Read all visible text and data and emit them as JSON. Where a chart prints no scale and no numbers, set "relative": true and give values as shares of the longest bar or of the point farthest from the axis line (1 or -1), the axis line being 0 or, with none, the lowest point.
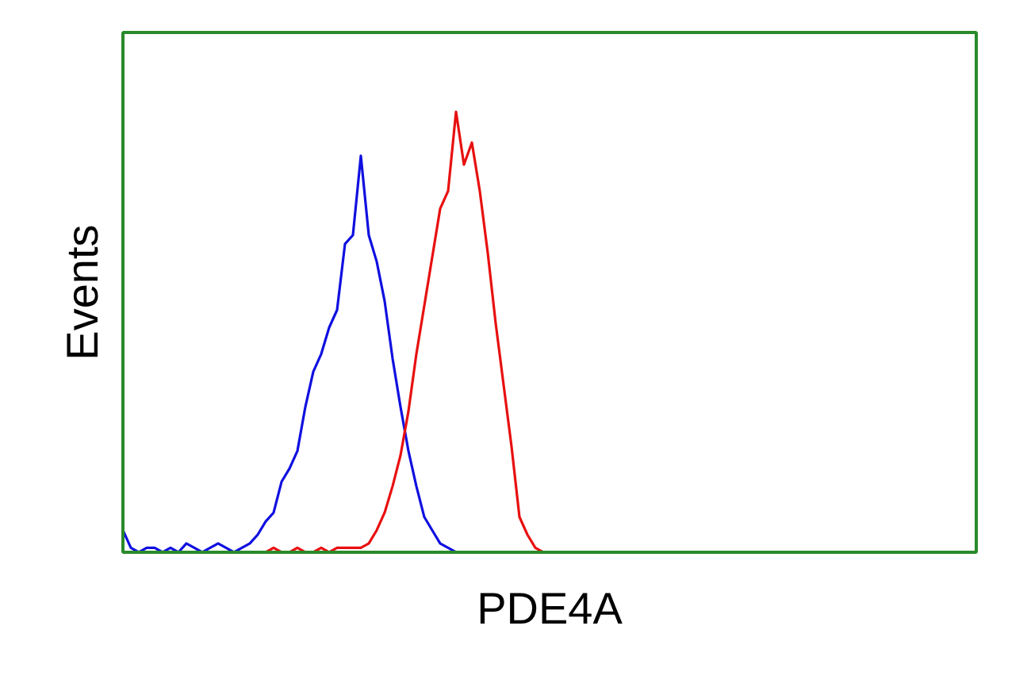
{
  "chart_data": {
    "type": "line",
    "relative": true,
    "xlabel": "PDE4A",
    "ylabel": "Events",
    "line_style": "solid",
    "marker": "none",
    "categories": [
      null,
      null,
      null,
      null,
      null,
      null,
      null,
      null,
      null,
      null,
      null,
      null,
      null,
      null,
      null,
      null,
      null,
      null,
      null,
      null,
      null,
      null,
      null,
      null,
      null,
      null,
      null,
      null,
      null,
      null,
      null,
      null,
      null,
      null,
      null,
      null,
      null,
      null,
      null,
      null,
      null,
      null,
      null,
      null,
      null,
      null,
      null,
      null,
      null,
      null,
      null,
      null,
      null,
      null,
      null,
      null,
      null,
      null,
      null,
      null,
      null,
      null,
      null,
      null,
      null,
      null,
      null,
      null,
      null,
      null,
      null,
      null,
      null,
      null,
      null,
      null,
      null,
      null,
      null,
      null,
      null,
      null,
      null,
      null,
      null,
      null,
      null,
      null,
      null,
      null,
      null,
      null,
      null,
      null,
      null,
      null,
      null,
      null,
      null,
      null,
      null,
      null,
      null,
      null,
      null,
      null,
      null,
      null
    ],
    "series": [
      {
        "color": "#1010e0",
        "values": [
          0.05,
          0.01,
          0,
          0.01,
          0.01,
          0,
          0.01,
          0,
          0.02,
          0.01,
          0,
          0.01,
          0.02,
          0.01,
          0,
          0.01,
          0.02,
          0.04,
          0.07,
          0.09,
          0.16,
          0.19,
          0.23,
          0.33,
          0.41,
          0.45,
          0.51,
          0.55,
          0.7,
          0.72,
          0.9,
          0.72,
          0.66,
          0.57,
          0.44,
          0.33,
          0.23,
          0.15,
          0.08,
          0.05,
          0.02,
          0.01,
          0,
          null,
          null,
          null,
          null,
          null,
          null,
          null,
          null,
          null,
          null,
          null,
          null,
          null,
          null,
          null,
          null,
          null,
          null,
          null,
          null,
          null,
          null,
          null,
          null,
          null,
          null,
          null,
          null,
          null,
          null,
          null,
          null,
          null,
          null,
          null,
          null,
          null,
          null,
          null,
          null,
          null,
          null,
          null,
          null,
          null,
          null,
          null,
          null,
          null,
          null,
          null,
          null,
          null,
          null,
          null,
          null,
          null,
          null,
          null,
          null,
          null,
          null,
          null,
          null,
          null
        ]
      },
      {
        "color": "#e81010",
        "values": [
          null,
          null,
          null,
          null,
          null,
          null,
          null,
          null,
          null,
          null,
          null,
          null,
          null,
          null,
          null,
          null,
          null,
          0,
          0,
          0.01,
          0,
          0,
          0.01,
          0,
          0,
          0.01,
          0,
          0.01,
          0.01,
          0.01,
          0.01,
          0.02,
          0.05,
          0.09,
          0.15,
          0.22,
          0.32,
          0.45,
          0.56,
          0.67,
          0.78,
          0.82,
          1.0,
          0.88,
          0.93,
          0.82,
          0.68,
          0.52,
          0.38,
          0.24,
          0.08,
          0.04,
          0.01,
          0,
          null,
          null,
          null,
          null,
          null,
          null,
          null,
          null,
          null,
          null,
          null,
          null,
          null,
          null,
          null,
          null,
          null,
          null,
          null,
          null,
          null,
          null,
          null,
          null,
          null,
          null,
          null,
          null,
          null,
          null,
          null,
          null,
          null,
          null,
          null,
          null,
          null,
          null,
          null,
          null,
          null,
          null,
          null,
          null,
          null,
          null,
          null,
          null,
          null,
          null,
          null,
          null,
          null,
          null
        ]
      }
    ]
  }
}
